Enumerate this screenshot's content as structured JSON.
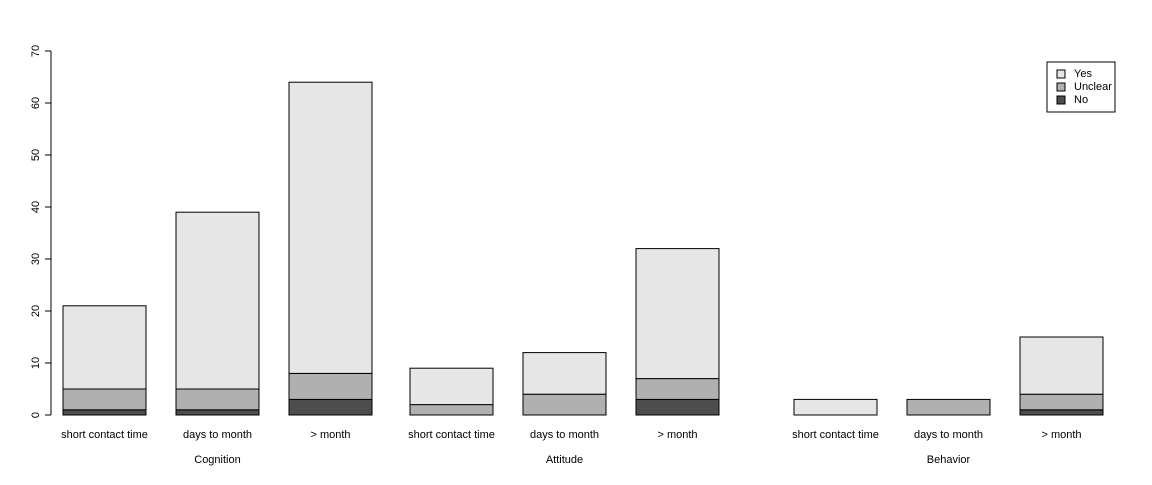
{
  "chart_data": {
    "type": "bar",
    "stacked": true,
    "title": "",
    "xlabel": "",
    "ylabel": "",
    "ylim": [
      0,
      70
    ],
    "yticks": [
      0,
      10,
      20,
      30,
      40,
      50,
      60,
      70
    ],
    "grid": false,
    "legend_position": "top-right",
    "groups": [
      {
        "name": "Cognition",
        "categories": [
          "short contact time",
          "days to month",
          "> month"
        ],
        "series": [
          {
            "name": "No",
            "values": [
              1,
              1,
              3
            ]
          },
          {
            "name": "Unclear",
            "values": [
              4,
              4,
              5
            ]
          },
          {
            "name": "Yes",
            "values": [
              16,
              34,
              56
            ]
          }
        ]
      },
      {
        "name": "Attitude",
        "categories": [
          "short contact time",
          "days to month",
          "> month"
        ],
        "series": [
          {
            "name": "No",
            "values": [
              0,
              0,
              3
            ]
          },
          {
            "name": "Unclear",
            "values": [
              2,
              4,
              4
            ]
          },
          {
            "name": "Yes",
            "values": [
              7,
              8,
              25
            ]
          }
        ]
      },
      {
        "name": "Behavior",
        "categories": [
          "short contact time",
          "days to month",
          "> month"
        ],
        "series": [
          {
            "name": "No",
            "values": [
              0,
              0,
              1
            ]
          },
          {
            "name": "Unclear",
            "values": [
              0,
              3,
              3
            ]
          },
          {
            "name": "Yes",
            "values": [
              3,
              0,
              11
            ]
          }
        ]
      }
    ],
    "legend": [
      {
        "name": "Yes",
        "color": "#e6e6e6"
      },
      {
        "name": "Unclear",
        "color": "#b0b0b0"
      },
      {
        "name": "No",
        "color": "#4d4d4d"
      }
    ],
    "series_colors": {
      "Yes": "#e6e6e6",
      "Unclear": "#b0b0b0",
      "No": "#4d4d4d"
    }
  }
}
